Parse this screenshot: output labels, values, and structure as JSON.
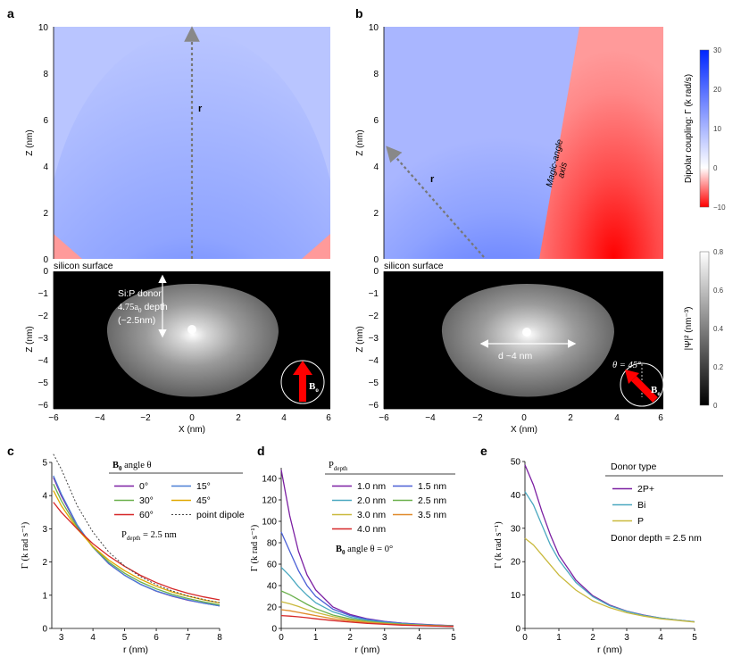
{
  "figure": {
    "panel_a": {
      "label": "a",
      "top": {
        "y_label": "Z (nm)",
        "y_ticks": [
          "0",
          "2",
          "4",
          "6",
          "8",
          "10"
        ],
        "arrow_label": "r"
      },
      "surface_label": "silicon surface",
      "bottom": {
        "y_label": "Z (nm)",
        "y_ticks": [
          "0",
          "−1",
          "−2",
          "−3",
          "−4",
          "−5",
          "−6"
        ],
        "x_label": "X (nm)",
        "x_ticks": [
          "−6",
          "−4",
          "−2",
          "0",
          "2",
          "4",
          "6"
        ],
        "donor_line1": "Si:P donor",
        "donor_line2": "4.75a",
        "donor_line2_sub": "0",
        "donor_line2_end": " depth",
        "donor_line3": "(~2.5nm)",
        "field_label": "B",
        "field_sub": "o"
      }
    },
    "panel_b": {
      "label": "b",
      "top": {
        "y_label": "Z (nm)",
        "y_ticks": [
          "0",
          "2",
          "4",
          "6",
          "8",
          "10"
        ],
        "arrow_label": "r",
        "magic1": "Magic-angle",
        "magic2": "axis"
      },
      "surface_label": "silicon surface",
      "bottom": {
        "y_label": "Z (nm)",
        "y_ticks": [
          "0",
          "−1",
          "−2",
          "−3",
          "−4",
          "−5",
          "−6"
        ],
        "x_label": "X (nm)",
        "x_ticks": [
          "−6",
          "−4",
          "−2",
          "0",
          "2",
          "4",
          "6"
        ],
        "width_label": "d ~4 nm",
        "theta_label": "θ = 45°",
        "field_label": "B",
        "field_sub": "o"
      }
    },
    "colorbar_top": {
      "label": "Dipolar coupling:  Γ  (k rad/s)",
      "ticks": [
        "30",
        "20",
        "10",
        "0",
        "−10"
      ],
      "colors": [
        "#0033ff",
        "#ffffff",
        "#ff0000"
      ]
    },
    "colorbar_bottom": {
      "label": "|Ψ|² (nm⁻³)",
      "ticks": [
        "0.8",
        "0.6",
        "0.4",
        "0.2",
        "0"
      ]
    }
  },
  "chart_data": [
    {
      "panel": "c",
      "type": "line",
      "xlabel": "r (nm)",
      "ylabel": "Γ (k rad s⁻¹)",
      "xlim": [
        2.7,
        8
      ],
      "ylim": [
        0,
        5
      ],
      "x_ticks": [
        3,
        4,
        5,
        6,
        7,
        8
      ],
      "y_ticks": [
        0,
        1,
        2,
        3,
        4,
        5
      ],
      "legend_title_bold": "B",
      "legend_title_sub": "0",
      "legend_title_rest": " angle θ",
      "annotation": "P",
      "annotation_sub": "depth",
      "annotation_rest": " = 2.5 nm",
      "x": [
        2.75,
        3.0,
        3.5,
        4.0,
        4.5,
        5.0,
        5.5,
        6.0,
        6.5,
        7.0,
        7.5,
        8.0
      ],
      "series": [
        {
          "name": "0°",
          "color": "#7b1fa2",
          "values": [
            4.55,
            4.0,
            3.1,
            2.45,
            1.95,
            1.6,
            1.33,
            1.12,
            0.97,
            0.85,
            0.76,
            0.68
          ]
        },
        {
          "name": "15°",
          "color": "#4a7fd6",
          "values": [
            4.6,
            4.05,
            3.12,
            2.45,
            1.96,
            1.6,
            1.33,
            1.13,
            0.98,
            0.86,
            0.76,
            0.68
          ]
        },
        {
          "name": "30°",
          "color": "#6ab04c",
          "values": [
            4.35,
            3.85,
            3.05,
            2.45,
            2.0,
            1.66,
            1.4,
            1.19,
            1.03,
            0.9,
            0.8,
            0.71
          ]
        },
        {
          "name": "45°",
          "color": "#e0a800",
          "values": [
            4.15,
            3.7,
            3.0,
            2.47,
            2.06,
            1.74,
            1.48,
            1.27,
            1.1,
            0.97,
            0.86,
            0.77
          ]
        },
        {
          "name": "60°",
          "color": "#d62728",
          "values": [
            3.8,
            3.5,
            3.0,
            2.55,
            2.18,
            1.87,
            1.6,
            1.38,
            1.2,
            1.06,
            0.95,
            0.86
          ]
        },
        {
          "name": "point dipole",
          "color": "#444444",
          "dashed": true,
          "values": [
            5.4,
            4.8,
            3.7,
            2.9,
            2.3,
            1.88,
            1.56,
            1.32,
            1.13,
            0.98,
            0.87,
            0.78
          ]
        }
      ]
    },
    {
      "panel": "d",
      "type": "line",
      "xlabel": "r (nm)",
      "ylabel": "Γ (k rad s⁻¹)",
      "xlim": [
        0,
        5
      ],
      "ylim": [
        0,
        150
      ],
      "x_ticks": [
        0,
        1,
        2,
        3,
        4,
        5
      ],
      "y_ticks": [
        0,
        20,
        40,
        60,
        80,
        100,
        120,
        140
      ],
      "legend_title": "P",
      "legend_title_sub": "depth",
      "annotation_bold": "B",
      "annotation_sub": "0",
      "annotation_rest": " angle θ = 0°",
      "x": [
        0,
        0.25,
        0.5,
        0.75,
        1.0,
        1.5,
        2.0,
        2.5,
        3.0,
        3.5,
        4.0,
        4.5,
        5.0
      ],
      "series": [
        {
          "name": "1.0 nm",
          "color": "#7b1fa2",
          "values": [
            148,
            105,
            72,
            50,
            36,
            20,
            13,
            9,
            6.5,
            5,
            4,
            3.2,
            2.6
          ]
        },
        {
          "name": "1.5 nm",
          "color": "#4a5fd6",
          "values": [
            90,
            72,
            54,
            40,
            30,
            18,
            12,
            8.5,
            6.3,
            4.8,
            3.8,
            3.1,
            2.5
          ]
        },
        {
          "name": "2.0 nm",
          "color": "#4aa8c0",
          "values": [
            57,
            49,
            39,
            31,
            24,
            15.5,
            10.5,
            7.6,
            5.7,
            4.4,
            3.5,
            2.9,
            2.4
          ]
        },
        {
          "name": "2.5 nm",
          "color": "#6ab04c",
          "values": [
            35,
            31.5,
            27,
            22.5,
            18.5,
            12.5,
            9,
            6.7,
            5.1,
            4,
            3.2,
            2.7,
            2.2
          ]
        },
        {
          "name": "3.0 nm",
          "color": "#c9b93c",
          "values": [
            25,
            23,
            20.5,
            17.5,
            15,
            11,
            8,
            6,
            4.7,
            3.7,
            3,
            2.5,
            2.1
          ]
        },
        {
          "name": "3.5 nm",
          "color": "#e08a2a",
          "values": [
            17.5,
            16.5,
            15,
            13.5,
            12,
            9,
            7,
            5.4,
            4.3,
            3.4,
            2.8,
            2.3,
            2.0
          ]
        },
        {
          "name": "4.0 nm",
          "color": "#d62728",
          "values": [
            12,
            11.5,
            10.8,
            10,
            9,
            7.3,
            5.9,
            4.7,
            3.8,
            3.1,
            2.6,
            2.2,
            1.8
          ]
        }
      ]
    },
    {
      "panel": "e",
      "type": "line",
      "xlabel": "r (nm)",
      "ylabel": "Γ (k rad s⁻¹)",
      "xlim": [
        0,
        5
      ],
      "ylim": [
        0,
        50
      ],
      "x_ticks": [
        0,
        1,
        2,
        3,
        4,
        5
      ],
      "y_ticks": [
        0,
        10,
        20,
        30,
        40,
        50
      ],
      "legend_title": "Donor type",
      "annotation": "Donor depth = 2.5 nm",
      "x": [
        0,
        0.25,
        0.5,
        0.75,
        1.0,
        1.5,
        2.0,
        2.5,
        3.0,
        3.5,
        4.0,
        4.5,
        5.0
      ],
      "series": [
        {
          "name": "2P+",
          "color": "#7b1fa2",
          "values": [
            49,
            43,
            35,
            28,
            22,
            14.5,
            9.8,
            7,
            5.2,
            4,
            3.1,
            2.5,
            2.0
          ]
        },
        {
          "name": "Bi",
          "color": "#4aa8c0",
          "values": [
            41,
            37,
            31,
            25,
            20.5,
            13.8,
            9.5,
            6.8,
            5.1,
            3.9,
            3.1,
            2.5,
            2.0
          ]
        },
        {
          "name": "P",
          "color": "#c9b93c",
          "values": [
            27,
            25,
            22,
            19,
            16,
            11.5,
            8.3,
            6.2,
            4.7,
            3.7,
            2.9,
            2.4,
            1.9
          ]
        }
      ]
    }
  ]
}
